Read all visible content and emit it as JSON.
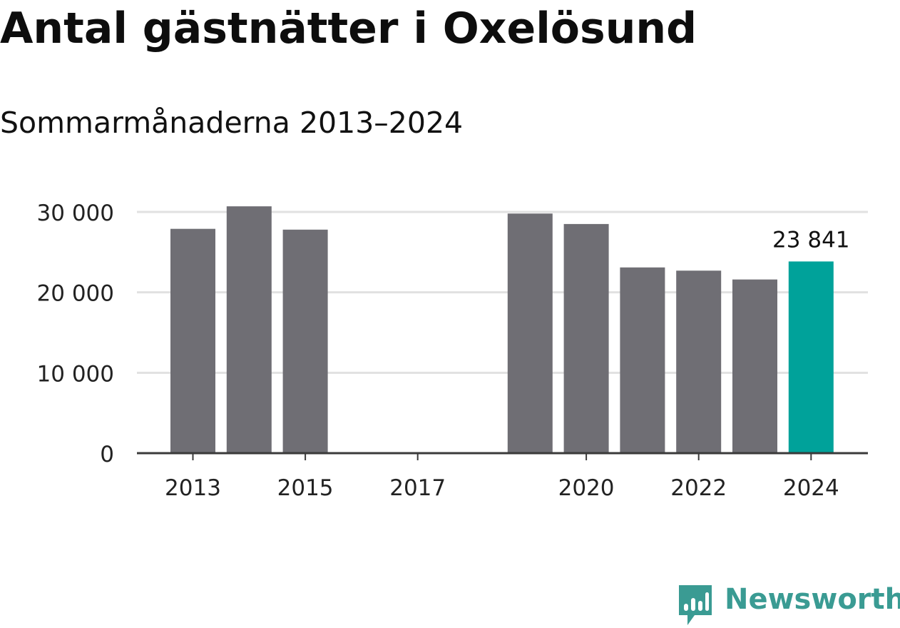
{
  "title": "Antal gästnätter i Oxelösund",
  "subtitle": "Sommarmånaderna 2013–2024",
  "brand": {
    "name": "Newsworthy",
    "color": "#3a9b93",
    "icon": "newsworthy-logo-icon"
  },
  "colors": {
    "bar": "#6f6e74",
    "highlight": "#00a29a",
    "grid": "#e1e1e1",
    "axis": "#3a3a3a",
    "text": "#222222"
  },
  "chart_data": {
    "type": "bar",
    "categories": [
      "2013",
      "2014",
      "2015",
      "2016",
      "2017",
      "2018",
      "2019",
      "2020",
      "2021",
      "2022",
      "2023",
      "2024"
    ],
    "values": [
      27900,
      30700,
      27800,
      null,
      null,
      null,
      29800,
      28500,
      23100,
      22700,
      21600,
      23841
    ],
    "highlight_index": 11,
    "data_labels": [
      {
        "index": 11,
        "text": "23 841"
      }
    ],
    "x_tick_labels": [
      {
        "index": 0,
        "text": "2013"
      },
      {
        "index": 2,
        "text": "2015"
      },
      {
        "index": 4,
        "text": "2017"
      },
      {
        "index": 7,
        "text": "2020"
      },
      {
        "index": 9,
        "text": "2022"
      },
      {
        "index": 11,
        "text": "2024"
      }
    ],
    "y_ticks": [
      {
        "value": 0,
        "text": "0"
      },
      {
        "value": 10000,
        "text": "10 000"
      },
      {
        "value": 20000,
        "text": "20 000"
      },
      {
        "value": 30000,
        "text": "30 000"
      }
    ],
    "ylim": [
      0,
      30000
    ],
    "grid": true,
    "xlabel": "",
    "ylabel": ""
  }
}
